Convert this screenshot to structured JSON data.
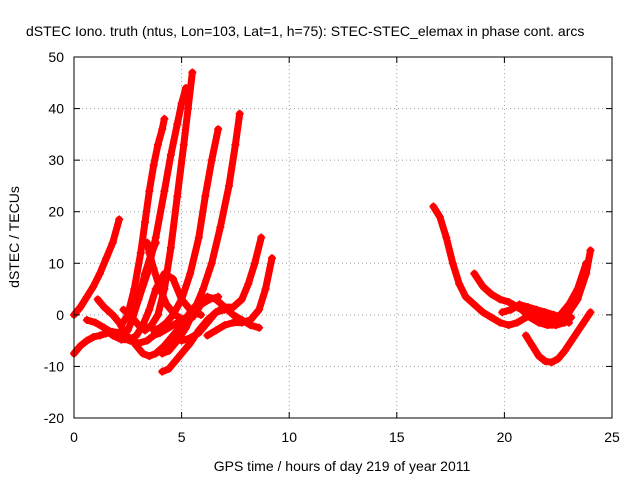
{
  "chart_data": {
    "type": "scatter",
    "title": "dSTEC Iono. truth (ntus, Lon=103, Lat=1, h=75): STEC-STEC_elemax in phase cont. arcs",
    "xlabel": "GPS time / hours of day 219 of year 2011",
    "ylabel": "dSTEC  / TECUs",
    "xlim": [
      0,
      25
    ],
    "ylim": [
      -20,
      50
    ],
    "xticks": [
      0,
      5,
      10,
      15,
      20,
      25
    ],
    "yticks": [
      -20,
      -10,
      0,
      10,
      20,
      30,
      40,
      50
    ],
    "grid": true,
    "marker": "+",
    "color": "#ff0000",
    "series": [
      {
        "x": [
          0.0,
          0.3,
          0.6,
          0.9,
          1.2,
          1.5,
          1.8,
          2.1
        ],
        "values": [
          0,
          1.5,
          3.5,
          5.5,
          8,
          11,
          14,
          18.5
        ]
      },
      {
        "x": [
          0.0,
          0.3,
          0.6,
          0.9,
          1.2,
          1.5,
          1.8,
          2.2,
          2.6,
          2.9,
          3.2,
          3.5,
          3.8,
          4.2,
          4.6,
          5.0,
          5.4,
          5.8,
          6.2,
          6.6,
          7.0,
          7.4,
          7.8,
          8.2,
          8.6
        ],
        "values": [
          -7.5,
          -6,
          -5,
          -4.3,
          -4,
          -3.6,
          -3.3,
          -3.5,
          -4.5,
          -6,
          -7.5,
          -8,
          -7.5,
          -6,
          -4,
          -2,
          0.5,
          2.5,
          3.5,
          3,
          1.5,
          0,
          -1,
          -2,
          -2.5
        ]
      },
      {
        "x": [
          0.6,
          1.0,
          1.4,
          1.8,
          2.2,
          2.6,
          3.0,
          3.4,
          3.7,
          4.0,
          4.4,
          4.8,
          5.2,
          5.6
        ],
        "values": [
          -1,
          -1.5,
          -2.5,
          -3.5,
          -4.5,
          -5,
          -5.5,
          -5,
          -4,
          -3.5,
          -2.5,
          -1.5,
          -0.5,
          0.5
        ]
      },
      {
        "x": [
          1.1,
          1.4,
          1.8,
          2.1,
          2.3,
          2.5,
          2.7,
          3.0,
          3.3,
          3.6,
          3.8
        ],
        "values": [
          3,
          1.5,
          0,
          -1.5,
          -3,
          -3,
          -1,
          3,
          8,
          12,
          14
        ]
      },
      {
        "x": [
          1.4,
          1.8,
          2.2,
          2.6,
          2.9,
          3.2,
          3.5,
          3.8,
          4.2,
          4.6,
          5.0,
          5.5,
          5.9
        ],
        "values": [
          -2.5,
          -4,
          -4.8,
          -4.8,
          -4,
          -2,
          1,
          5,
          8,
          7,
          3,
          0.5,
          0
        ]
      },
      {
        "x": [
          2.2,
          2.5,
          2.8,
          3.1,
          3.3,
          3.5,
          3.7,
          3.9,
          4.1,
          4.2
        ],
        "values": [
          -2,
          0,
          5,
          12,
          18,
          24,
          29,
          33,
          36,
          38
        ]
      },
      {
        "x": [
          2.3,
          2.6,
          3.0,
          3.4,
          3.8,
          4.2,
          4.5,
          4.8,
          5.0,
          5.2
        ],
        "values": [
          1,
          0,
          3,
          8,
          15,
          24,
          31,
          37,
          41,
          44
        ]
      },
      {
        "x": [
          2.8,
          3.0,
          3.3,
          3.6,
          3.9,
          4.2,
          4.5,
          4.8,
          5.1,
          5.3,
          5.5
        ],
        "values": [
          -1,
          -2,
          -3,
          -2,
          0,
          5,
          13,
          23,
          33,
          40,
          47
        ]
      },
      {
        "x": [
          3.4,
          3.5,
          3.7,
          4.0,
          4.3,
          4.7,
          5.1,
          5.5,
          5.9,
          6.3,
          6.7
        ],
        "values": [
          14,
          12,
          9,
          5,
          2,
          0,
          -1,
          -0.5,
          2,
          3,
          3.5
        ]
      },
      {
        "x": [
          3.7,
          4.0,
          4.3,
          4.6,
          5.0,
          5.4,
          5.8,
          6.1,
          6.4,
          6.7
        ],
        "values": [
          -3,
          -2.5,
          -1.5,
          0,
          3,
          8,
          15,
          23,
          30,
          36
        ]
      },
      {
        "x": [
          4.1,
          4.4,
          4.8,
          5.2,
          5.6,
          6.0,
          6.4,
          6.8,
          7.2,
          7.5,
          7.7
        ],
        "values": [
          -7.5,
          -7,
          -5,
          -2.5,
          1,
          5,
          10,
          17,
          25,
          33,
          39
        ]
      },
      {
        "x": [
          4.1,
          4.4,
          4.7,
          5.0,
          5.4,
          5.8,
          6.2,
          6.6,
          7.0
        ],
        "values": [
          -11,
          -10.5,
          -9,
          -7.5,
          -5.5,
          -3,
          -1,
          0.5,
          1
        ]
      },
      {
        "x": [
          5.0,
          5.4,
          5.8,
          6.2,
          6.6,
          7.0,
          7.4,
          7.8,
          8.1,
          8.4,
          8.7
        ],
        "values": [
          -5,
          -4.5,
          -3.5,
          -1.5,
          0.5,
          1.5,
          1.5,
          3,
          6,
          10,
          15
        ]
      },
      {
        "x": [
          6.2,
          6.6,
          7.0,
          7.4,
          7.8,
          8.2,
          8.6,
          8.9,
          9.2
        ],
        "values": [
          -4,
          -3,
          -2,
          -1.5,
          -1.5,
          -1,
          1,
          5,
          11
        ]
      },
      {
        "x": [
          16.7,
          17.0,
          17.3,
          17.6,
          17.9,
          18.2,
          18.6,
          19.0,
          19.4,
          19.8,
          20.2,
          20.6,
          21.0,
          21.4,
          21.8,
          22.2,
          22.6,
          23.0,
          23.4,
          23.8
        ],
        "values": [
          21,
          19,
          15,
          10,
          6,
          3.5,
          2,
          0.5,
          -0.5,
          -1.5,
          -2,
          -1.5,
          -0.5,
          0,
          0,
          -0.5,
          0,
          2,
          5,
          10
        ]
      },
      {
        "x": [
          18.6,
          19.0,
          19.4,
          19.8,
          20.2,
          20.6,
          21.0,
          21.4,
          21.8,
          22.2,
          22.6,
          23.0,
          23.4,
          23.8,
          24.0
        ],
        "values": [
          8,
          5.5,
          4,
          3,
          2.5,
          1.5,
          0.5,
          -0.5,
          -1,
          -1.5,
          -1,
          0.5,
          3,
          8,
          12.5
        ]
      },
      {
        "x": [
          19.9,
          20.3,
          20.7,
          21.1,
          21.5,
          21.9,
          22.3,
          22.7,
          23.0
        ],
        "values": [
          0.5,
          1,
          2,
          1.5,
          1,
          0.5,
          0,
          -1,
          -1.5
        ]
      },
      {
        "x": [
          20.4,
          20.8,
          21.2,
          21.6,
          22.0,
          22.4,
          22.8,
          23.1
        ],
        "values": [
          2,
          1,
          -0.5,
          -1.5,
          -2,
          -2,
          -1.5,
          -0.5
        ]
      },
      {
        "x": [
          21.0,
          21.3,
          21.6,
          21.9,
          22.2,
          22.5,
          22.8,
          23.2,
          23.6,
          24.0
        ],
        "values": [
          -4,
          -6,
          -8,
          -9,
          -9.2,
          -8.5,
          -7,
          -4.5,
          -2,
          0.5
        ]
      }
    ]
  }
}
